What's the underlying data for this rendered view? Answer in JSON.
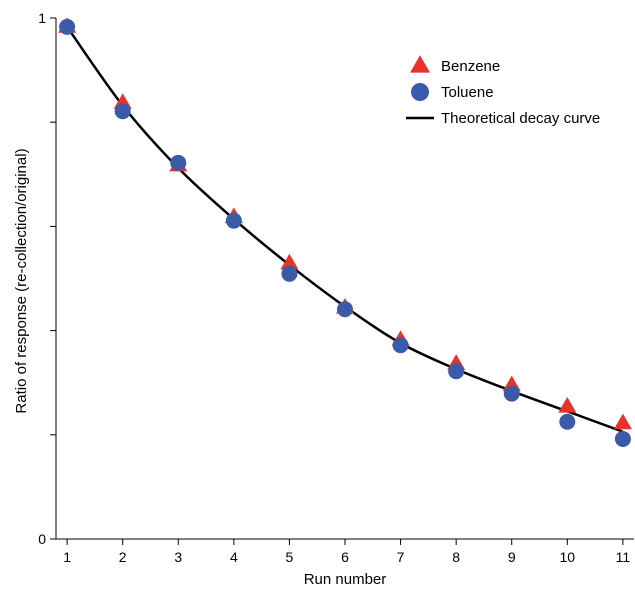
{
  "chart_data": {
    "type": "scatter",
    "title": "",
    "xlabel": "Run number",
    "ylabel": "Ratio of response (re-collection/original)",
    "xlim": [
      0.8,
      11.2
    ],
    "ylim": [
      0,
      1
    ],
    "x_ticks": [
      "1",
      "2",
      "3",
      "4",
      "5",
      "6",
      "7",
      "8",
      "9",
      "10",
      "11"
    ],
    "y_tick_labels": [
      {
        "value": 0,
        "label": "0"
      },
      {
        "value": 1,
        "label": "1"
      }
    ],
    "y_minor_ticks": [
      0.2,
      0.4,
      0.6,
      0.8
    ],
    "grid": false,
    "legend_position": "top-right",
    "series": [
      {
        "name": "Benzene",
        "marker": "triangle",
        "color": "#e8322b",
        "x": [
          1,
          2,
          3,
          4,
          5,
          6,
          7,
          8,
          9,
          10,
          11
        ],
        "y": [
          0.983,
          0.837,
          0.717,
          0.618,
          0.529,
          0.444,
          0.382,
          0.336,
          0.295,
          0.254,
          0.222
        ]
      },
      {
        "name": "Toluene",
        "marker": "circle",
        "color": "#3a5ba8",
        "x": [
          1,
          2,
          3,
          4,
          5,
          6,
          7,
          8,
          9,
          10,
          11
        ],
        "y": [
          0.983,
          0.821,
          0.722,
          0.611,
          0.509,
          0.441,
          0.372,
          0.322,
          0.279,
          0.225,
          0.192
        ]
      },
      {
        "name": "Theoretical decay curve",
        "type": "line",
        "color": "#000000",
        "x": [
          1,
          2,
          3,
          4,
          5,
          6,
          7,
          8,
          9,
          10,
          11
        ],
        "y": [
          0.983,
          0.832,
          0.712,
          0.614,
          0.526,
          0.446,
          0.376,
          0.326,
          0.284,
          0.245,
          0.206
        ]
      }
    ]
  }
}
